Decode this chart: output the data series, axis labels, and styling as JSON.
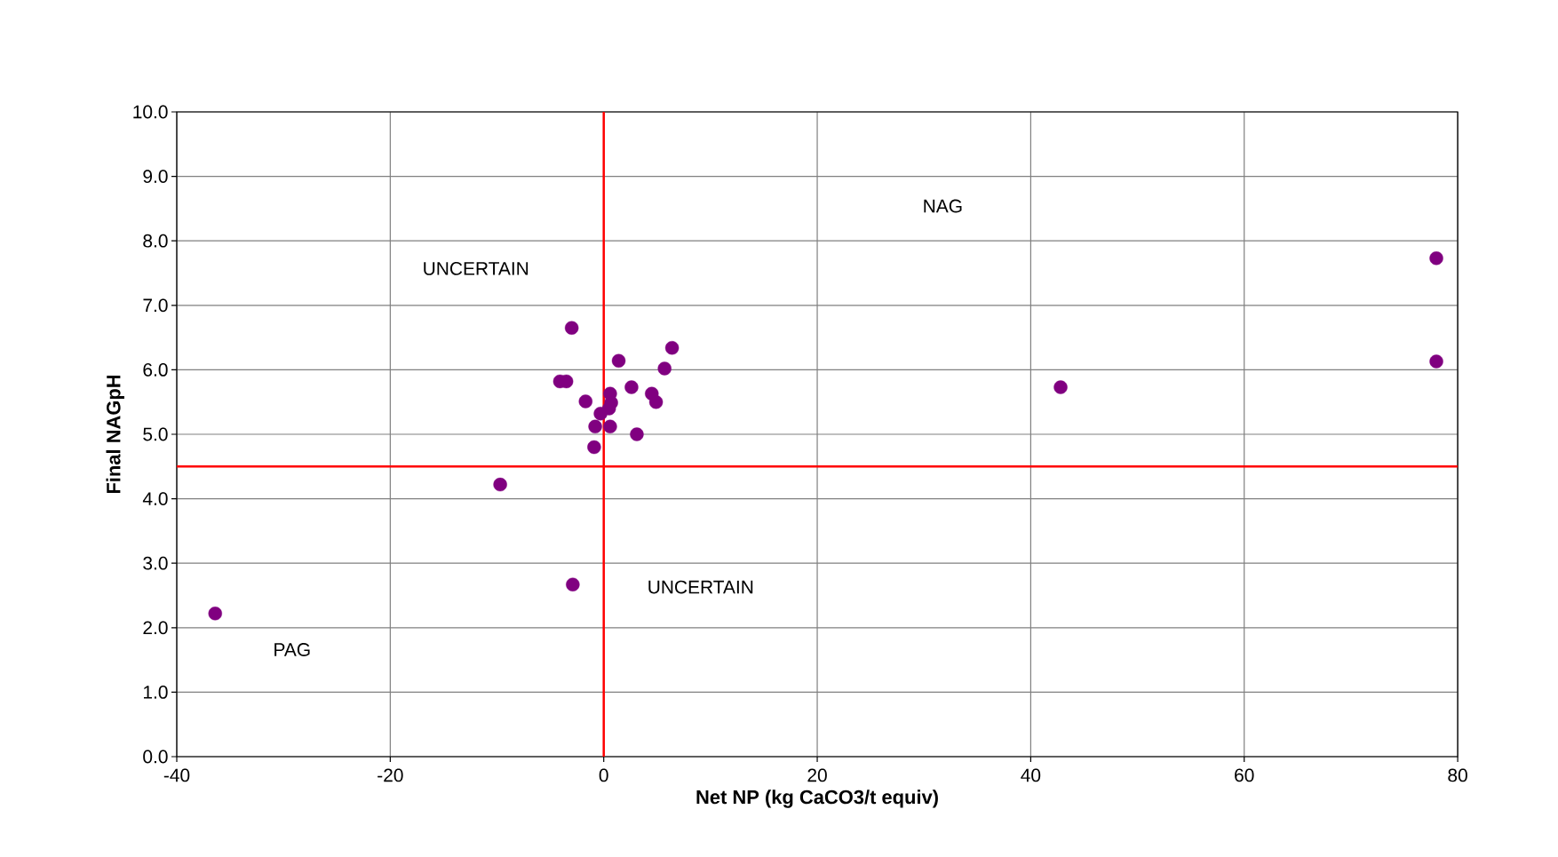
{
  "chart_data": {
    "type": "scatter",
    "xlabel": "Net NP (kg CaCO3/t equiv)",
    "ylabel": "Final NAGpH",
    "xlim": [
      -40,
      80
    ],
    "xticks": [
      -40,
      -20,
      0,
      20,
      40,
      60,
      80
    ],
    "ylim": [
      0,
      10
    ],
    "yticks": [
      {
        "value": 0,
        "label": "0.0"
      },
      {
        "value": 1,
        "label": "1.0"
      },
      {
        "value": 2,
        "label": "2.0"
      },
      {
        "value": 3,
        "label": "3.0"
      },
      {
        "value": 4,
        "label": "4.0"
      },
      {
        "value": 5,
        "label": "5.0"
      },
      {
        "value": 6,
        "label": "6.0"
      },
      {
        "value": 7,
        "label": "7.0"
      },
      {
        "value": 8,
        "label": "8.0"
      },
      {
        "value": 9,
        "label": "9.0"
      },
      {
        "value": 10,
        "label": "10.0"
      }
    ],
    "grid": true,
    "marker": "circle",
    "series": [
      {
        "color": "#800080",
        "x": [
          -3.0,
          1.4,
          6.4,
          5.7,
          -4.1,
          -3.5,
          -1.7,
          0.6,
          0.7,
          0.5,
          2.6,
          4.5,
          4.9,
          -0.3,
          -0.8,
          0.6,
          3.1,
          -0.9,
          -9.7,
          -2.9,
          -36.4,
          42.8,
          78.0,
          78.0
        ],
        "values": [
          6.65,
          6.14,
          6.34,
          6.02,
          5.82,
          5.82,
          5.51,
          5.63,
          5.49,
          5.4,
          5.73,
          5.63,
          5.5,
          5.32,
          5.12,
          5.12,
          5.0,
          4.8,
          4.22,
          2.67,
          2.22,
          5.73,
          7.73,
          6.13
        ]
      }
    ],
    "ref_lines": [
      {
        "axis": "x",
        "value": 0,
        "color": "#ff0000"
      },
      {
        "axis": "y",
        "value": 4.5,
        "color": "#ff0000"
      }
    ],
    "annotations": [
      "NAG",
      "UNCERTAIN",
      "UNCERTAIN",
      "PAG"
    ]
  }
}
